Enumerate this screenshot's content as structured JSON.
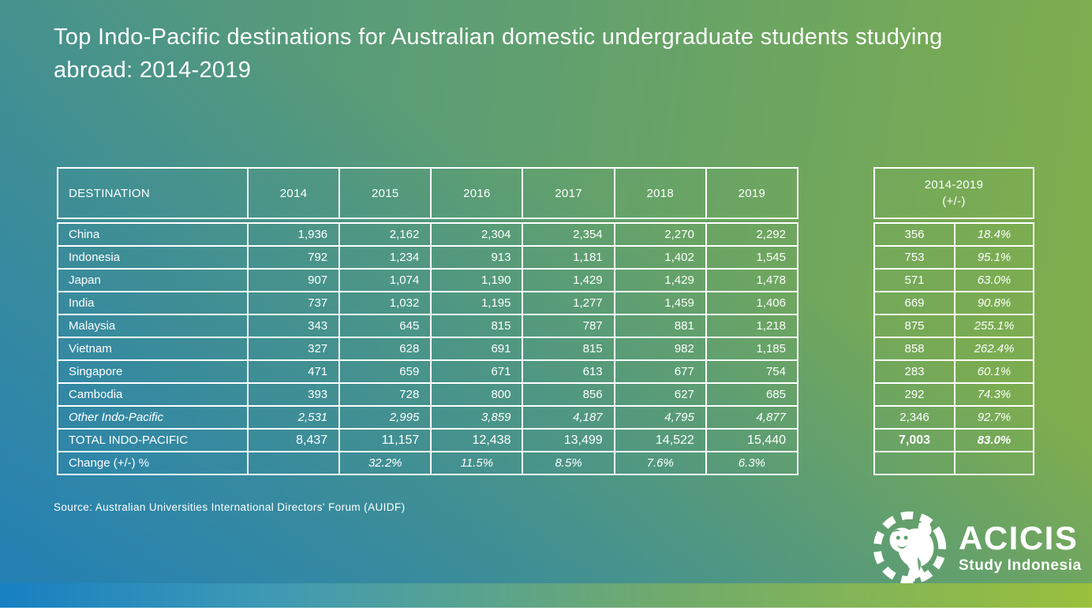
{
  "title": "Top Indo-Pacific destinations for Australian domestic undergraduate students studying abroad: 2014-2019",
  "main_table": {
    "columns": [
      "DESTINATION",
      "2014",
      "2015",
      "2016",
      "2017",
      "2018",
      "2019"
    ],
    "rows": [
      {
        "destination": "China",
        "values": [
          "1,936",
          "2,162",
          "2,304",
          "2,354",
          "2,270",
          "2,292"
        ],
        "style": "normal"
      },
      {
        "destination": "Indonesia",
        "values": [
          "792",
          "1,234",
          "913",
          "1,181",
          "1,402",
          "1,545"
        ],
        "style": "normal"
      },
      {
        "destination": "Japan",
        "values": [
          "907",
          "1,074",
          "1,190",
          "1,429",
          "1,429",
          "1,478"
        ],
        "style": "normal"
      },
      {
        "destination": "India",
        "values": [
          "737",
          "1,032",
          "1,195",
          "1,277",
          "1,459",
          "1,406"
        ],
        "style": "normal"
      },
      {
        "destination": "Malaysia",
        "values": [
          "343",
          "645",
          "815",
          "787",
          "881",
          "1,218"
        ],
        "style": "normal"
      },
      {
        "destination": "Vietnam",
        "values": [
          "327",
          "628",
          "691",
          "815",
          "982",
          "1,185"
        ],
        "style": "normal"
      },
      {
        "destination": "Singapore",
        "values": [
          "471",
          "659",
          "671",
          "613",
          "677",
          "754"
        ],
        "style": "normal"
      },
      {
        "destination": "Cambodia",
        "values": [
          "393",
          "728",
          "800",
          "856",
          "627",
          "685"
        ],
        "style": "normal"
      },
      {
        "destination": "Other Indo-Pacific",
        "values": [
          "2,531",
          "2,995",
          "3,859",
          "4,187",
          "4,795",
          "4,877"
        ],
        "style": "italic"
      },
      {
        "destination": "TOTAL INDO-PACIFIC",
        "values": [
          "8,437",
          "11,157",
          "12,438",
          "13,499",
          "14,522",
          "15,440"
        ],
        "style": "total"
      },
      {
        "destination": "Change (+/-) %",
        "values": [
          "",
          "32.2%",
          "11.5%",
          "8.5%",
          "7.6%",
          "6.3%"
        ],
        "style": "change"
      }
    ]
  },
  "change_table": {
    "header_line1": "2014-2019",
    "header_line2": "(+/-)",
    "rows": [
      {
        "abs": "356",
        "pct": "18.4%",
        "style": "normal"
      },
      {
        "abs": "753",
        "pct": "95.1%",
        "style": "normal"
      },
      {
        "abs": "571",
        "pct": "63.0%",
        "style": "normal"
      },
      {
        "abs": "669",
        "pct": "90.8%",
        "style": "normal"
      },
      {
        "abs": "875",
        "pct": "255.1%",
        "style": "normal"
      },
      {
        "abs": "858",
        "pct": "262.4%",
        "style": "normal"
      },
      {
        "abs": "283",
        "pct": "60.1%",
        "style": "normal"
      },
      {
        "abs": "292",
        "pct": "74.3%",
        "style": "normal"
      },
      {
        "abs": "2,346",
        "pct": "92.7%",
        "style": "normal"
      },
      {
        "abs": "7,003",
        "pct": "83.0%",
        "style": "total"
      },
      {
        "abs": "",
        "pct": "",
        "style": "empty"
      }
    ]
  },
  "source": "Source: Australian Universities International Directors' Forum (AUIDF)",
  "logo": {
    "wordmark": "ACICIS",
    "tagline": "Study Indonesia"
  },
  "colors": {
    "bg_teal": "#4a9489",
    "bg_green": "#82af4a",
    "bg_blue": "#177ac3",
    "strip_blue": "#1780c2",
    "strip_lime": "#9ac03c",
    "table_border": "#ffffff",
    "text": "#ffffff"
  },
  "chart_data": {
    "type": "table",
    "title": "Top Indo-Pacific destinations for Australian domestic undergraduate students studying abroad: 2014-2019",
    "columns": [
      "DESTINATION",
      "2014",
      "2015",
      "2016",
      "2017",
      "2018",
      "2019",
      "2014-2019 (+/-) count",
      "2014-2019 (+/-) percent"
    ],
    "rows": [
      [
        "China",
        1936,
        2162,
        2304,
        2354,
        2270,
        2292,
        356,
        18.4
      ],
      [
        "Indonesia",
        792,
        1234,
        913,
        1181,
        1402,
        1545,
        753,
        95.1
      ],
      [
        "Japan",
        907,
        1074,
        1190,
        1429,
        1429,
        1478,
        571,
        63.0
      ],
      [
        "India",
        737,
        1032,
        1195,
        1277,
        1459,
        1406,
        669,
        90.8
      ],
      [
        "Malaysia",
        343,
        645,
        815,
        787,
        881,
        1218,
        875,
        255.1
      ],
      [
        "Vietnam",
        327,
        628,
        691,
        815,
        982,
        1185,
        858,
        262.4
      ],
      [
        "Singapore",
        471,
        659,
        671,
        613,
        677,
        754,
        283,
        60.1
      ],
      [
        "Cambodia",
        393,
        728,
        800,
        856,
        627,
        685,
        292,
        74.3
      ],
      [
        "Other Indo-Pacific",
        2531,
        2995,
        3859,
        4187,
        4795,
        4877,
        2346,
        92.7
      ],
      [
        "TOTAL INDO-PACIFIC",
        8437,
        11157,
        12438,
        13499,
        14522,
        15440,
        7003,
        83.0
      ],
      [
        "Change (+/-) %",
        null,
        32.2,
        11.5,
        8.5,
        7.6,
        6.3,
        null,
        null
      ]
    ],
    "source": "Australian Universities International Directors' Forum (AUIDF)"
  }
}
